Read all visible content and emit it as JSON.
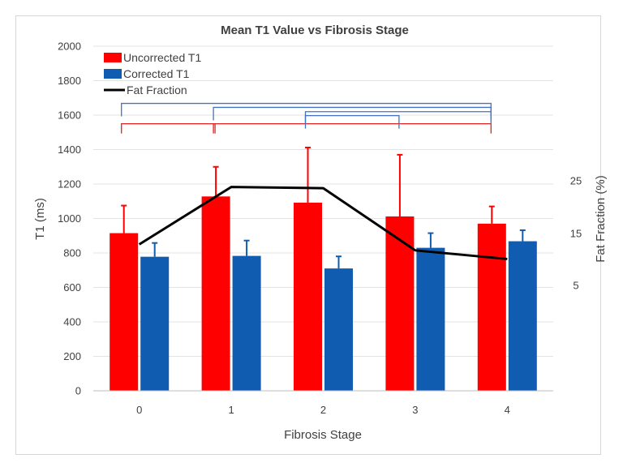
{
  "chart_data": {
    "type": "bar",
    "title": "Mean T1 Value vs Fibrosis Stage",
    "xlabel": "Fibrosis Stage",
    "ylabel": "T1 (ms)",
    "y2label": "Fat Fraction (%)",
    "categories": [
      "0",
      "1",
      "2",
      "3",
      "4"
    ],
    "ylim": [
      0,
      2000
    ],
    "yticks": [
      0,
      200,
      400,
      600,
      800,
      1000,
      1200,
      1400,
      1600,
      1800,
      2000
    ],
    "y2ticks": [
      "5",
      "15",
      "25"
    ],
    "series": [
      {
        "name": "Uncorrected T1",
        "kind": "bar",
        "color": "#ff0000",
        "values": [
          915,
          1128,
          1092,
          1012,
          970
        ],
        "error_upper": [
          1075,
          1300,
          1412,
          1370,
          1070
        ]
      },
      {
        "name": "Corrected T1",
        "kind": "bar",
        "color": "#0f5cb0",
        "values": [
          778,
          783,
          710,
          830,
          868
        ],
        "error_upper": [
          858,
          872,
          780,
          915,
          932
        ]
      },
      {
        "name": "Fat Fraction",
        "kind": "line",
        "color": "#000000",
        "values_on_primary_axis": [
          850,
          1183,
          1176,
          815,
          765
        ]
      }
    ],
    "significance_brackets": [
      {
        "from": "0",
        "to": "1",
        "color": "#e32222",
        "level": 1550
      },
      {
        "from": "1",
        "to": "4",
        "color": "#e32222",
        "level": 1550
      },
      {
        "from": "2",
        "to": "3",
        "color": "#4472c4",
        "level": 1597
      },
      {
        "from": "2",
        "to": "4",
        "color": "#4472c4",
        "level": 1620
      },
      {
        "from": "1",
        "to": "4",
        "color": "#4472c4",
        "level": 1645
      },
      {
        "from": "0",
        "to": "4",
        "color": "#4472c4",
        "level": 1668
      }
    ],
    "legend_position": "top-left"
  }
}
